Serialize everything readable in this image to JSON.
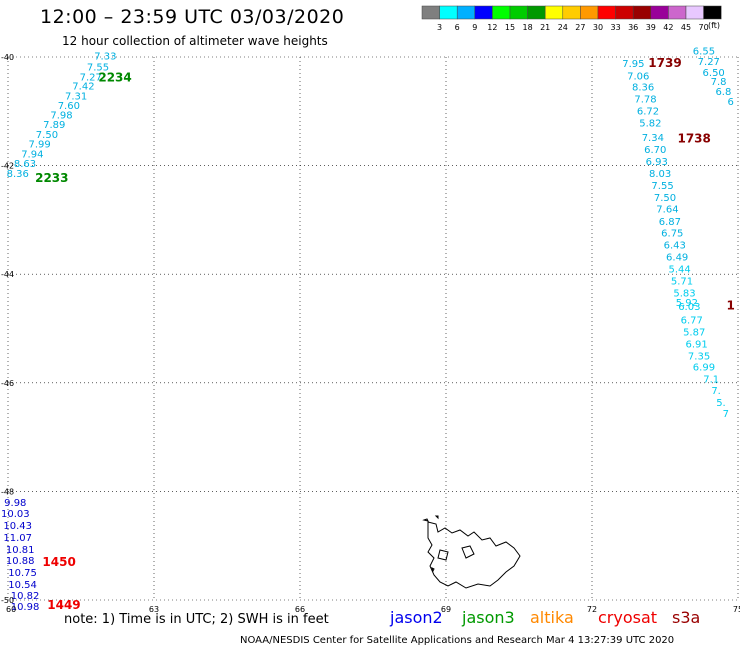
{
  "header": {
    "title": "12:00 – 23:59 UTC 03/03/2020",
    "subtitle": "12 hour collection of altimeter wave heights"
  },
  "legend": {
    "unit": "(ft)",
    "bins": [
      {
        "label": "3",
        "color": "#7f7f7f"
      },
      {
        "label": "6",
        "color": "#00ffff"
      },
      {
        "label": "9",
        "color": "#00b0ff"
      },
      {
        "label": "12",
        "color": "#0000ff"
      },
      {
        "label": "15",
        "color": "#00ff00"
      },
      {
        "label": "18",
        "color": "#00cc00"
      },
      {
        "label": "21",
        "color": "#009900"
      },
      {
        "label": "24",
        "color": "#ffff00"
      },
      {
        "label": "27",
        "color": "#ffcc00"
      },
      {
        "label": "30",
        "color": "#ff9900"
      },
      {
        "label": "33",
        "color": "#ff0000"
      },
      {
        "label": "36",
        "color": "#cc0000"
      },
      {
        "label": "39",
        "color": "#990000"
      },
      {
        "label": "42",
        "color": "#990099"
      },
      {
        "label": "45",
        "color": "#cc66cc"
      },
      {
        "label": "70",
        "color": "#e8c8ff"
      },
      {
        "label": "",
        "color": "#000000"
      }
    ]
  },
  "map": {
    "x_ticks": [
      "60",
      "63",
      "66",
      "69",
      "72",
      "75"
    ],
    "y_ticks": [
      "-40",
      "-42",
      "-44",
      "-46",
      "-48",
      "-50"
    ],
    "lon_range": [
      60,
      75
    ],
    "lat_range": [
      -50,
      -40
    ]
  },
  "tracks": [
    {
      "color": "#00b0e0",
      "points": [
        {
          "v": "7.33",
          "lon": 62.0,
          "lat": -40.05
        },
        {
          "v": "7.55",
          "lon": 61.85,
          "lat": -40.25
        },
        {
          "v": "7.27",
          "lon": 61.7,
          "lat": -40.43
        },
        {
          "v": "7.42",
          "lon": 61.55,
          "lat": -40.6
        },
        {
          "v": "7.31",
          "lon": 61.4,
          "lat": -40.78
        },
        {
          "v": "7.60",
          "lon": 61.25,
          "lat": -40.96
        },
        {
          "v": "7.98",
          "lon": 61.1,
          "lat": -41.13
        },
        {
          "v": "7.89",
          "lon": 60.95,
          "lat": -41.31
        },
        {
          "v": "7.50",
          "lon": 60.8,
          "lat": -41.49
        },
        {
          "v": "7.99",
          "lon": 60.65,
          "lat": -41.67
        },
        {
          "v": "7.94",
          "lon": 60.5,
          "lat": -41.85
        },
        {
          "v": "8.63",
          "lon": 60.35,
          "lat": -42.03
        },
        {
          "v": "8.36",
          "lon": 60.2,
          "lat": -42.21
        }
      ]
    },
    {
      "color": "#0000cc",
      "points": [
        {
          "v": "9.98",
          "lon": 60.15,
          "lat": -48.27
        },
        {
          "v": "10.03",
          "lon": 60.15,
          "lat": -48.47
        },
        {
          "v": "10.43",
          "lon": 60.2,
          "lat": -48.69
        },
        {
          "v": "11.07",
          "lon": 60.2,
          "lat": -48.91
        },
        {
          "v": "10.81",
          "lon": 60.25,
          "lat": -49.13
        },
        {
          "v": "10.88",
          "lon": 60.25,
          "lat": -49.34
        },
        {
          "v": "10.75",
          "lon": 60.3,
          "lat": -49.56
        },
        {
          "v": "10.54",
          "lon": 60.3,
          "lat": -49.78
        },
        {
          "v": "10.82",
          "lon": 60.35,
          "lat": -49.98
        },
        {
          "v": "10.98",
          "lon": 60.35,
          "lat": -50.18
        }
      ]
    },
    {
      "color": "#00b0e0",
      "points": [
        {
          "v": "7.95",
          "lon": 72.85,
          "lat": -40.18
        },
        {
          "v": "7.06",
          "lon": 72.95,
          "lat": -40.41
        },
        {
          "v": "8.36",
          "lon": 73.05,
          "lat": -40.62
        },
        {
          "v": "7.78",
          "lon": 73.1,
          "lat": -40.84
        },
        {
          "v": "6.72",
          "lon": 73.15,
          "lat": -41.06
        },
        {
          "v": "5.82",
          "lon": 73.2,
          "lat": -41.28
        },
        {
          "v": "7.34",
          "lon": 73.25,
          "lat": -41.55
        },
        {
          "v": "6.70",
          "lon": 73.3,
          "lat": -41.77
        },
        {
          "v": "6.93",
          "lon": 73.33,
          "lat": -41.99
        },
        {
          "v": "8.03",
          "lon": 73.4,
          "lat": -42.21
        },
        {
          "v": "7.55",
          "lon": 73.45,
          "lat": -42.43
        },
        {
          "v": "7.50",
          "lon": 73.5,
          "lat": -42.65
        },
        {
          "v": "7.64",
          "lon": 73.55,
          "lat": -42.86
        },
        {
          "v": "6.87",
          "lon": 73.6,
          "lat": -43.09
        },
        {
          "v": "6.75",
          "lon": 73.65,
          "lat": -43.31
        },
        {
          "v": "6.43",
          "lon": 73.7,
          "lat": -43.53
        },
        {
          "v": "6.49",
          "lon": 73.75,
          "lat": -43.75
        }
      ]
    },
    {
      "color": "#00ccee",
      "points": [
        {
          "v": "5.44",
          "lon": 73.8,
          "lat": -43.97
        },
        {
          "v": "5.71",
          "lon": 73.85,
          "lat": -44.19
        },
        {
          "v": "5.83",
          "lon": 73.9,
          "lat": -44.41
        },
        {
          "v": "5.92",
          "lon": 73.95,
          "lat": -44.59
        },
        {
          "v": "6.03",
          "lon": 74.0,
          "lat": -44.66
        },
        {
          "v": "6.77",
          "lon": 74.05,
          "lat": -44.91
        },
        {
          "v": "5.87",
          "lon": 74.1,
          "lat": -45.13
        },
        {
          "v": "6.91",
          "lon": 74.15,
          "lat": -45.35
        },
        {
          "v": "7.35",
          "lon": 74.2,
          "lat": -45.57
        },
        {
          "v": "6.99",
          "lon": 74.3,
          "lat": -45.77
        },
        {
          "v": "7.1",
          "lon": 74.45,
          "lat": -45.99
        },
        {
          "v": "7.",
          "lon": 74.55,
          "lat": -46.21
        },
        {
          "v": "5.",
          "lon": 74.65,
          "lat": -46.43
        },
        {
          "v": "7",
          "lon": 74.75,
          "lat": -46.63
        }
      ]
    },
    {
      "color": "#00b0e0",
      "points": [
        {
          "v": "6.55",
          "lon": 74.3,
          "lat": -39.95
        },
        {
          "v": "7.27",
          "lon": 74.4,
          "lat": -40.15
        },
        {
          "v": "6.50",
          "lon": 74.5,
          "lat": -40.35
        },
        {
          "v": "7.8",
          "lon": 74.6,
          "lat": -40.52
        },
        {
          "v": "6.8",
          "lon": 74.7,
          "lat": -40.7
        },
        {
          "v": "6",
          "lon": 74.85,
          "lat": -40.88
        }
      ]
    }
  ],
  "pass_times": [
    {
      "t": "2234",
      "color": "#008800",
      "lon": 62.2,
      "lat": -40.45
    },
    {
      "t": "2233",
      "color": "#008800",
      "lon": 60.9,
      "lat": -42.3
    },
    {
      "t": "1739",
      "color": "#880000",
      "lon": 73.5,
      "lat": -40.18
    },
    {
      "t": "1738",
      "color": "#880000",
      "lon": 74.1,
      "lat": -41.57
    },
    {
      "t": "1",
      "color": "#880000",
      "lon": 74.85,
      "lat": -44.65
    },
    {
      "t": "1450",
      "color": "#ee0000",
      "lon": 61.05,
      "lat": -49.37
    },
    {
      "t": "1449",
      "color": "#ee0000",
      "lon": 61.15,
      "lat": -50.17
    }
  ],
  "footer": {
    "note": "note:  1) Time is in UTC;  2) SWH is in feet",
    "credit": "NOAA/NESDIS Center for Satellite Applications and Research     Mar  4 13:27:39 UTC 2020",
    "satellites": [
      {
        "name": "jason2",
        "color": "#0000ee"
      },
      {
        "name": "jason3",
        "color": "#009900"
      },
      {
        "name": "altika",
        "color": "#ff8800"
      },
      {
        "name": "cryosat",
        "color": "#ee0000"
      },
      {
        "name": "s3a",
        "color": "#990000"
      }
    ]
  }
}
